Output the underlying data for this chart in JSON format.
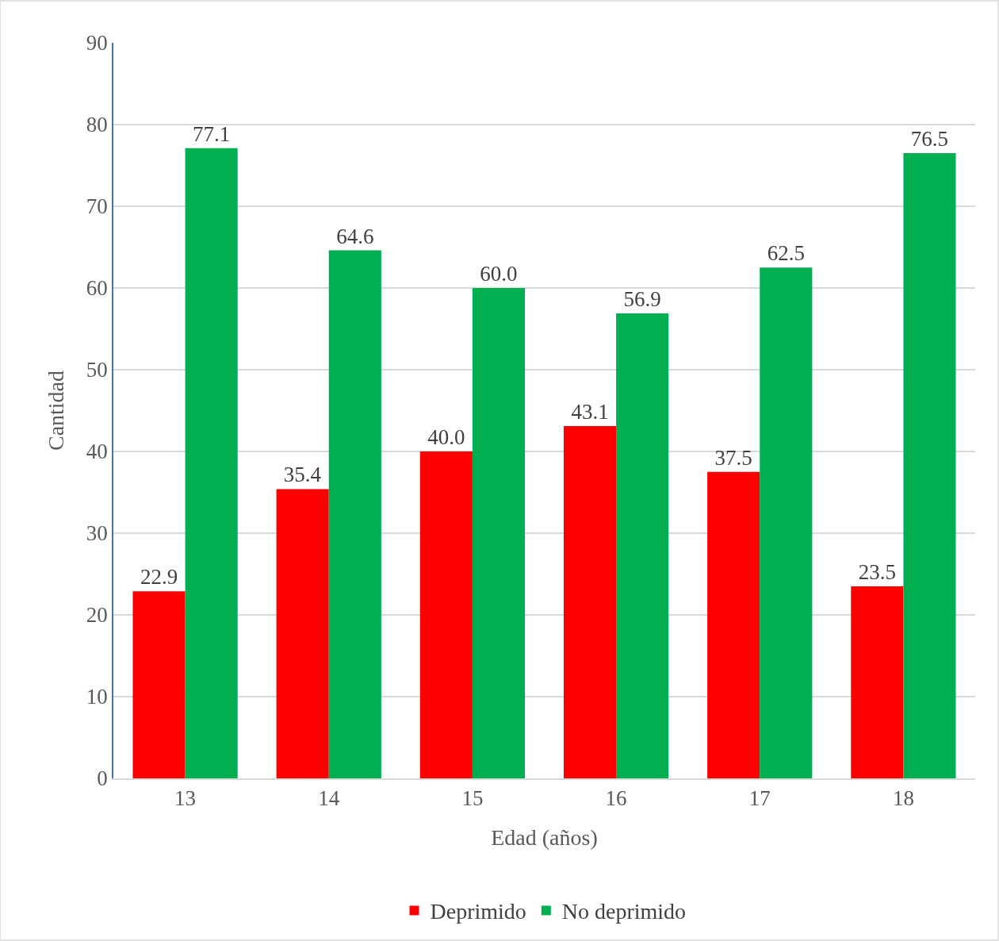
{
  "chart_data": {
    "type": "bar",
    "xlabel": "Edad (años)",
    "ylabel": "Cantidad",
    "categories": [
      "13",
      "14",
      "15",
      "16",
      "17",
      "18"
    ],
    "series": [
      {
        "name": "Deprimido",
        "color": "#ff0000",
        "values": [
          22.9,
          35.4,
          40.0,
          43.1,
          37.5,
          23.5
        ],
        "value_labels": [
          "22.9",
          "35.4",
          "40.0",
          "43.1",
          "37.5",
          "23.5"
        ]
      },
      {
        "name": "No deprimido",
        "color": "#00b050",
        "values": [
          77.1,
          64.6,
          60.0,
          56.9,
          62.5,
          76.5
        ],
        "value_labels": [
          "77.1",
          "64.6",
          "60.0",
          "56.9",
          "62.5",
          "76.5"
        ]
      }
    ],
    "ylim": [
      0,
      90
    ],
    "yticks": [
      0,
      10,
      20,
      30,
      40,
      50,
      60,
      70,
      80,
      90
    ],
    "grid": "y",
    "legend": "bottom"
  }
}
